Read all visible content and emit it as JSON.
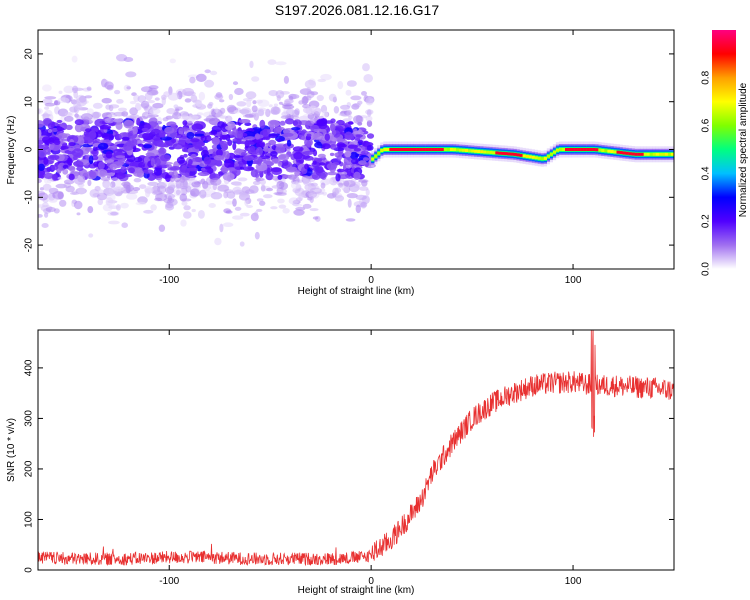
{
  "title": "S197.2026.081.12.16.G17",
  "chart_data": [
    {
      "type": "heatmap",
      "xlabel": "Height of straight line (km)",
      "ylabel": "Frequency (Hz)",
      "xlim": [
        -165,
        150
      ],
      "ylim": [
        -25,
        25
      ],
      "xticks": [
        -100,
        0,
        100
      ],
      "yticks": [
        -20,
        -10,
        0,
        10,
        20
      ],
      "colorbar": {
        "label": "Normalized spectral amplitude",
        "range": [
          0,
          1
        ],
        "ticks": [
          "0.0",
          "0.2",
          "0.4",
          "0.6",
          "0.8"
        ],
        "colors": [
          "#ffffff",
          "#a070f0",
          "#5000ff",
          "#0000ff",
          "#00c0ff",
          "#00ff80",
          "#80ff00",
          "#ffff00",
          "#ffa000",
          "#ff0000",
          "#ff0080"
        ]
      },
      "description_points": {
        "noise_region_x": [
          -165,
          0
        ],
        "noise_freq_spread_hz": 25,
        "tone_region_x": [
          0,
          150
        ],
        "tone_freq_hz": [
          {
            "x": 0,
            "f": -2
          },
          {
            "x": 5,
            "f": 0
          },
          {
            "x": 40,
            "f": 0
          },
          {
            "x": 70,
            "f": -1
          },
          {
            "x": 85,
            "f": -2
          },
          {
            "x": 92,
            "f": 0
          },
          {
            "x": 110,
            "f": 0
          },
          {
            "x": 130,
            "f": -1
          },
          {
            "x": 150,
            "f": -1
          }
        ]
      }
    },
    {
      "type": "line",
      "xlabel": "Height of straight line (km)",
      "ylabel": "SNR (10 * v/v)",
      "xlim": [
        -165,
        150
      ],
      "ylim": [
        0,
        475
      ],
      "xticks": [
        -100,
        0,
        100
      ],
      "yticks": [
        0,
        100,
        200,
        300,
        400
      ],
      "color": "#e83030",
      "series": [
        {
          "name": "SNR",
          "x": [
            -165,
            -150,
            -120,
            -100,
            -80,
            -60,
            -40,
            -20,
            -5,
            0,
            10,
            20,
            25,
            30,
            40,
            50,
            60,
            70,
            80,
            90,
            100,
            110,
            120,
            130,
            140,
            150
          ],
          "values": [
            25,
            22,
            22,
            25,
            25,
            22,
            22,
            22,
            25,
            30,
            60,
            110,
            140,
            190,
            250,
            300,
            330,
            350,
            365,
            370,
            372,
            365,
            365,
            362,
            360,
            355
          ]
        }
      ]
    }
  ]
}
